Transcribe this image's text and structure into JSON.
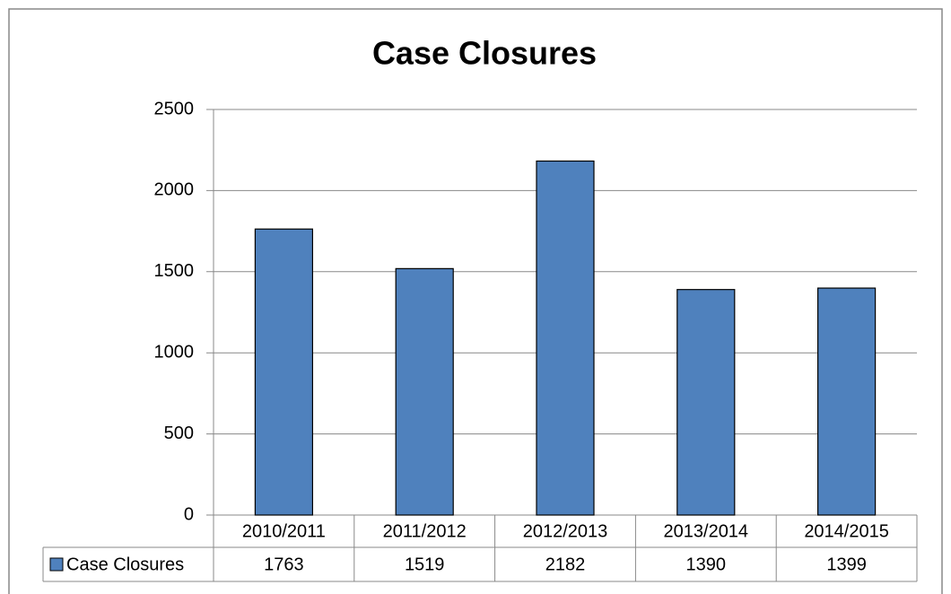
{
  "chart_data": {
    "type": "bar",
    "title": "Case Closures",
    "categories": [
      "2010/2011",
      "2011/2012",
      "2012/2013",
      "2013/2014",
      "2014/2015"
    ],
    "series": [
      {
        "name": "Case Closures",
        "color": "#4f81bd",
        "values": [
          1763,
          1519,
          2182,
          1390,
          1399
        ]
      }
    ],
    "ylim": [
      0,
      2500
    ],
    "yticks": [
      0,
      500,
      1000,
      1500,
      2000,
      2500
    ],
    "grid": true
  }
}
